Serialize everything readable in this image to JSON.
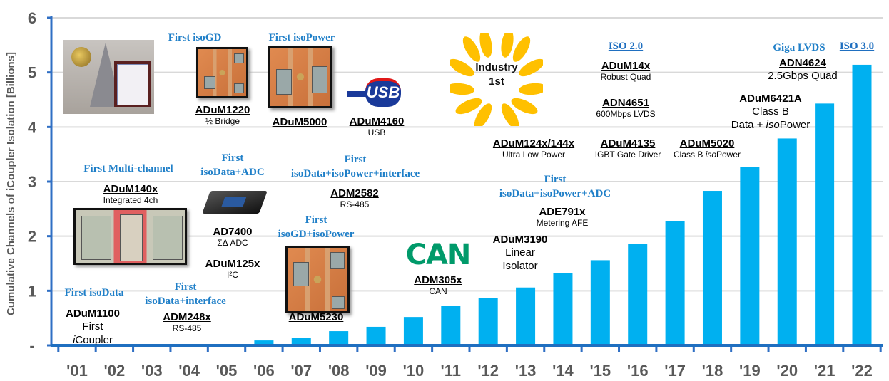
{
  "chart_data": {
    "type": "bar",
    "title": "",
    "ylabel": "Cumulative Channels of iCoupler Isolation [Billions]",
    "xlabel": "",
    "ylim": [
      0,
      6
    ],
    "yticks": [
      0,
      1,
      2,
      3,
      4,
      5,
      6
    ],
    "ytick_labels": [
      "-",
      "1",
      "2",
      "3",
      "4",
      "5",
      "6"
    ],
    "grid": true,
    "categories": [
      "'01",
      "'02",
      "'03",
      "'04",
      "'05",
      "'06",
      "'07",
      "'08",
      "'09",
      "'10",
      "'11",
      "'12",
      "'13",
      "'14",
      "'15",
      "'16",
      "'17",
      "'18",
      "'19",
      "'20",
      "'21",
      "'22"
    ],
    "values": [
      0,
      0,
      0,
      0,
      0,
      0.09,
      0.14,
      0.26,
      0.34,
      0.52,
      0.72,
      0.87,
      1.06,
      1.32,
      1.56,
      1.86,
      2.28,
      2.83,
      3.27,
      3.79,
      4.43,
      5.14
    ],
    "colors": {
      "bar": "#00b0f0",
      "axis": "#2f6fc4",
      "grid": "#d9d9d9",
      "tick_label": "#595959",
      "heading": "#1f7fc8",
      "laurel": "#ffc000",
      "can_logo": "#009a6a"
    },
    "annotations": [
      {
        "heading": [
          "First isoData"
        ],
        "part": "ADuM1100",
        "lines": [
          "First",
          "iCoupler"
        ]
      },
      {
        "heading": [
          "First",
          "isoData+interface"
        ],
        "part": "ADM248x",
        "lines": [
          "RS-485"
        ]
      },
      {
        "heading": [
          "First Multi-channel"
        ],
        "part": "ADuM140x",
        "lines": [
          "Integrated 4ch"
        ]
      },
      {
        "heading": [
          "First",
          "isoData+ADC"
        ],
        "part": "AD7400",
        "lines": [
          "ΣΔ ADC"
        ]
      },
      {
        "part": "ADuM125x",
        "lines": [
          "I²C"
        ]
      },
      {
        "heading": [
          "First isoGD"
        ],
        "part": "ADuM1220",
        "lines": [
          "½ Bridge"
        ]
      },
      {
        "heading": [
          "First isoPower"
        ],
        "part": "ADuM5000",
        "lines": []
      },
      {
        "part": "ADuM4160",
        "lines": [
          "USB"
        ]
      },
      {
        "heading": [
          "First",
          "isoData+isoPower+interface"
        ]
      },
      {
        "part": "ADM2582",
        "lines": [
          "RS-485"
        ]
      },
      {
        "heading": [
          "First",
          "isoGD+isoPower"
        ],
        "part": "ADuM5230",
        "lines": []
      },
      {
        "logo": "CAN",
        "part": "ADM305x",
        "lines": [
          "CAN"
        ]
      },
      {
        "part": "ADuM3190",
        "lines": [
          "Linear",
          "Isolator"
        ]
      },
      {
        "heading": [
          "First",
          "isoData+isoPower+ADC"
        ]
      },
      {
        "part": "ADE791x",
        "lines": [
          "Metering AFE"
        ]
      },
      {
        "badge": [
          "Industry",
          "1st"
        ]
      },
      {
        "heading": [
          "ISO 2.0"
        ],
        "heading_link": true,
        "part": "ADuM14x",
        "lines": [
          "Robust Quad"
        ]
      },
      {
        "part": "ADN4651",
        "lines": [
          "600Mbps LVDS"
        ]
      },
      {
        "part": "ADuM124x/144x",
        "lines": [
          "Ultra Low Power"
        ]
      },
      {
        "part": "ADuM4135",
        "lines": [
          "IGBT Gate Driver"
        ]
      },
      {
        "part": "ADuM5020",
        "lines": [
          "Class B isoPower"
        ]
      },
      {
        "heading": [
          "Giga LVDS"
        ]
      },
      {
        "heading": [
          "ISO 3.0"
        ],
        "heading_link": true
      },
      {
        "part": "ADN4624",
        "lines": [
          "2.5Gbps Quad"
        ]
      },
      {
        "part": "ADuM6421A",
        "lines": [
          "Class B",
          "Data + isoPower"
        ]
      }
    ],
    "images": {
      "usb_logo": "CERTIFIED USB HI-SPEED"
    }
  }
}
